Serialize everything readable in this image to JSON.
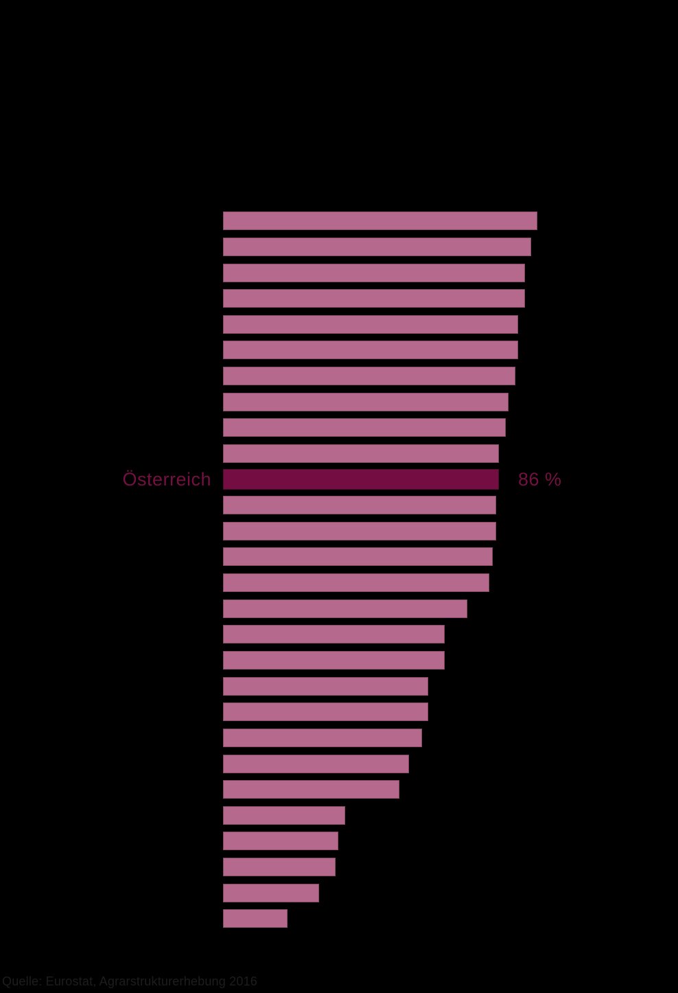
{
  "chart_data": {
    "type": "bar",
    "orientation": "horizontal",
    "title": "",
    "categories": [
      "",
      "",
      "",
      "",
      "",
      "",
      "",
      "",
      "",
      "",
      "Österreich",
      "",
      "",
      "",
      "",
      "",
      "",
      "",
      "",
      "",
      "",
      "",
      "",
      "",
      "",
      "",
      "",
      ""
    ],
    "values": [
      98,
      96,
      94,
      94,
      92,
      92,
      91,
      89,
      88,
      86,
      86,
      85,
      85,
      84,
      83,
      76,
      69,
      69,
      64,
      64,
      62,
      58,
      55,
      38,
      36,
      35,
      30,
      20
    ],
    "unit": "%",
    "xlim": [
      0,
      100
    ],
    "grid": false,
    "legend": "none",
    "highlight": {
      "index": 10,
      "label": "Österreich",
      "value": 86,
      "value_label": "86 %"
    },
    "source": "Quelle: Eurostat, Agrarstrukturerhebung 2016",
    "colors": {
      "bar": "#b5698c",
      "bar_edge": "#8d4a6b",
      "highlight_bar": "#740d42",
      "label_text": "#751042",
      "source_text": "#1d1d1d",
      "background": "#000000"
    }
  }
}
